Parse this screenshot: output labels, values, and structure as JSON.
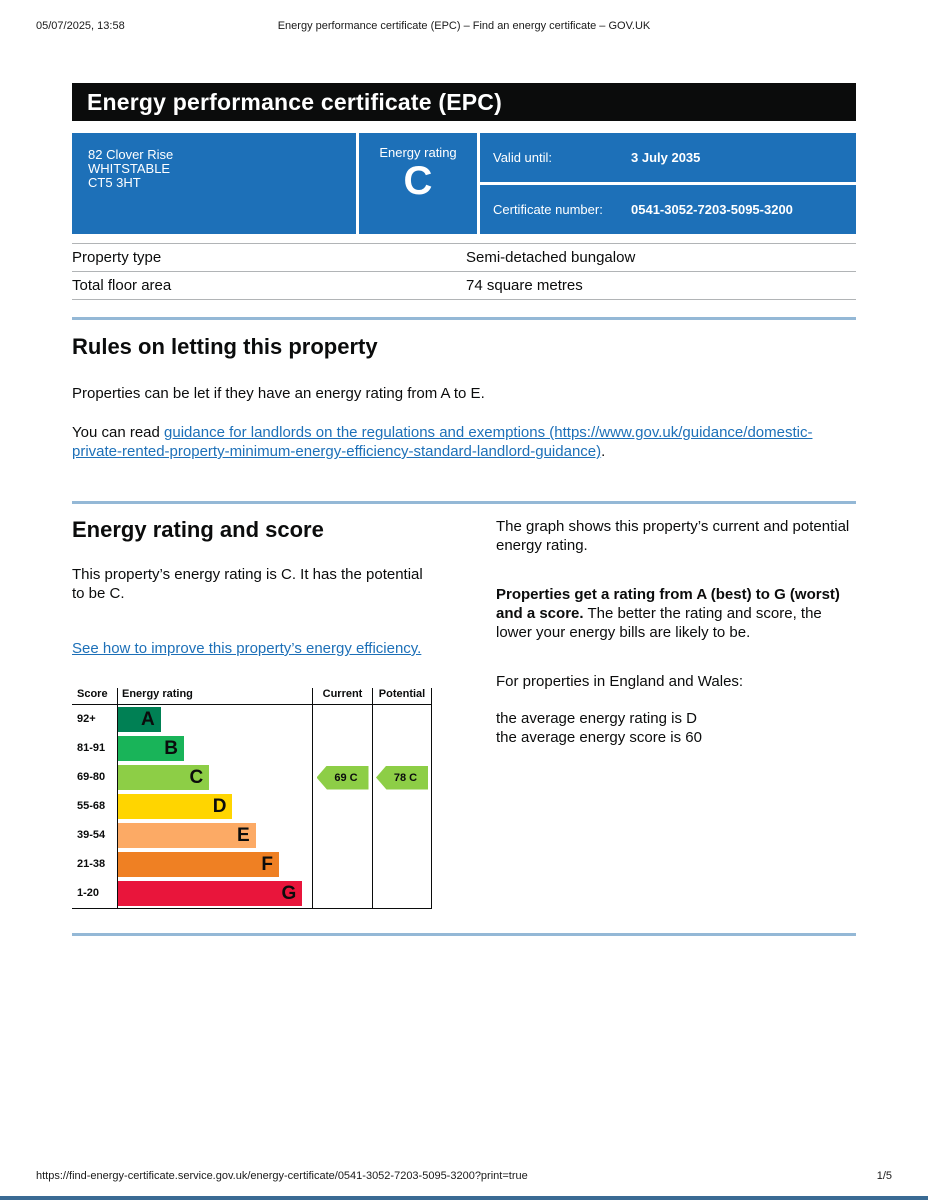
{
  "meta": {
    "print_datetime": "05/07/2025, 13:58",
    "print_title": "Energy performance certificate (EPC) – Find an energy certificate – GOV.UK",
    "footer_url": "https://find-energy-certificate.service.gov.uk/energy-certificate/0541-3052-7203-5095-3200?print=true",
    "page_indicator": "1/5"
  },
  "banner": {
    "title": "Energy performance certificate (EPC)"
  },
  "summary": {
    "address_lines": [
      "82 Clover Rise",
      "WHITSTABLE",
      "CT5 3HT"
    ],
    "energy_rating_label": "Energy rating",
    "energy_rating": "C",
    "valid_until_label": "Valid until:",
    "valid_until": "3 July 2035",
    "certificate_number_label": "Certificate number:",
    "certificate_number": "0541-3052-7203-5095-3200"
  },
  "property_details": {
    "rows": [
      {
        "label": "Property type",
        "value": "Semi-detached bungalow"
      },
      {
        "label": "Total floor area",
        "value": "74 square metres"
      }
    ]
  },
  "letting_rules": {
    "heading": "Rules on letting this property",
    "paragraph": "Properties can be let if they have an energy rating from A to E.",
    "read_prefix": "You can read ",
    "guidance_link": "guidance for landlords on the regulations and exemptions (https://www.gov.uk/guidance/domestic-private-rented-property-minimum-energy-efficiency-standard-landlord-guidance)",
    "read_suffix": "."
  },
  "rating_section": {
    "heading": "Energy rating and score",
    "description": "This property’s energy rating is C. It has the potential to be C.",
    "improve_link": "See how to improve this property’s energy efficiency.",
    "graph_intro": "The graph shows this property’s current and potential energy rating.",
    "explain_bold": "Properties get a rating from A (best) to G (worst) and a score.",
    "explain_rest": " The better the rating and score, the lower your energy bills are likely to be.",
    "england_wales": "For properties in England and Wales:",
    "average_rating": "the average energy rating is D",
    "average_score": "the average energy score is 60"
  },
  "chart_data": {
    "type": "bar",
    "title": "Energy rating and score",
    "headers": [
      "Score",
      "Energy rating",
      "Current",
      "Potential"
    ],
    "bands": [
      {
        "score": "92+",
        "letter": "A",
        "color": "#008054",
        "width_pct": 22
      },
      {
        "score": "81-91",
        "letter": "B",
        "color": "#19b459",
        "width_pct": 34
      },
      {
        "score": "69-80",
        "letter": "C",
        "color": "#8dce46",
        "width_pct": 47
      },
      {
        "score": "55-68",
        "letter": "D",
        "color": "#ffd500",
        "width_pct": 59
      },
      {
        "score": "39-54",
        "letter": "E",
        "color": "#fcaa65",
        "width_pct": 71
      },
      {
        "score": "21-38",
        "letter": "F",
        "color": "#ef8023",
        "width_pct": 83
      },
      {
        "score": "1-20",
        "letter": "G",
        "color": "#e9153b",
        "width_pct": 95
      }
    ],
    "current": {
      "label": "69 C",
      "score": 69,
      "band": "C",
      "row_index": 2,
      "color": "#8dce46"
    },
    "potential": {
      "label": "78 C",
      "score": 78,
      "band": "C",
      "row_index": 2,
      "color": "#8dce46"
    }
  },
  "colors": {
    "govuk_blue": "#1d70b8",
    "banner_black": "#0b0c0c",
    "link_blue": "#1d70b8",
    "divider_blue": "#94b8d6",
    "table_border": "#b1b4b6"
  }
}
